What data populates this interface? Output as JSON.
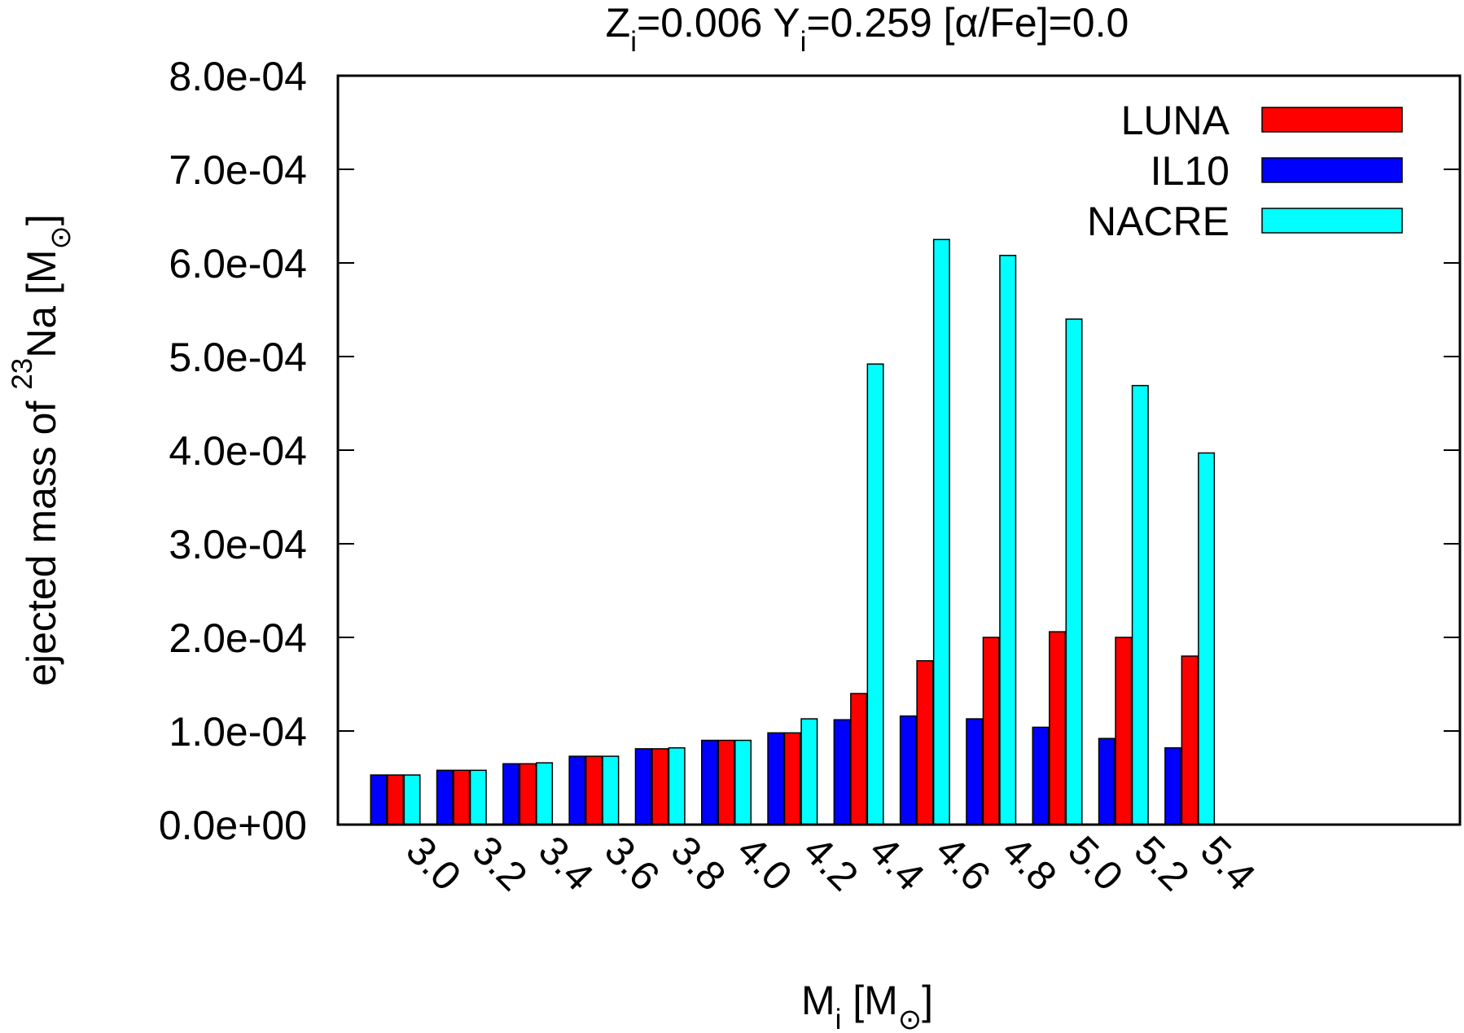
{
  "chart_data": {
    "type": "bar",
    "title": {
      "parts": [
        {
          "text": "Z"
        },
        {
          "text": "i",
          "sub": true
        },
        {
          "text": "=0.006 Y"
        },
        {
          "text": "i",
          "sub": true
        },
        {
          "text": "=0.259  [α/Fe]=0.0"
        }
      ]
    },
    "ylabel": {
      "parts": [
        {
          "text": "ejected mass  of "
        },
        {
          "text": "23",
          "sup": true
        },
        {
          "text": "Na  [M"
        },
        {
          "text": "⊙",
          "sub": true
        },
        {
          "text": "]"
        }
      ]
    },
    "xlabel": {
      "parts": [
        {
          "text": "M"
        },
        {
          "text": "i",
          "sub": true
        },
        {
          "text": " [M"
        },
        {
          "text": "⊙",
          "sub": true
        },
        {
          "text": "]"
        }
      ]
    },
    "categories": [
      "3.0",
      "3.2",
      "3.4",
      "3.6",
      "3.8",
      "4.0",
      "4.2",
      "4.4",
      "4.6",
      "4.8",
      "5.0",
      "5.2",
      "5.4"
    ],
    "ylim": [
      0,
      0.0008
    ],
    "yticks": [
      0,
      0.0001,
      0.0002,
      0.0003,
      0.0004,
      0.0005,
      0.0006,
      0.0007,
      0.0008
    ],
    "ytick_labels": [
      "0.0e+00",
      "1.0e-04",
      "2.0e-04",
      "3.0e-04",
      "4.0e-04",
      "5.0e-04",
      "6.0e-04",
      "7.0e-04",
      "8.0e-04"
    ],
    "legend_position": "top-right",
    "legend_order": [
      "LUNA",
      "IL10",
      "NACRE"
    ],
    "bar_order": [
      "IL10",
      "LUNA",
      "NACRE"
    ],
    "series": [
      {
        "name": "IL10",
        "color": "#0000ff",
        "values": [
          5.3e-05,
          5.8e-05,
          6.5e-05,
          7.3e-05,
          8.1e-05,
          9e-05,
          9.8e-05,
          0.000112,
          0.000116,
          0.000113,
          0.000104,
          9.2e-05,
          8.2e-05
        ]
      },
      {
        "name": "LUNA",
        "color": "#ff0000",
        "values": [
          5.3e-05,
          5.8e-05,
          6.5e-05,
          7.3e-05,
          8.1e-05,
          9e-05,
          9.8e-05,
          0.00014,
          0.000175,
          0.0002,
          0.000206,
          0.0002,
          0.00018
        ]
      },
      {
        "name": "NACRE",
        "color": "#00ffff",
        "values": [
          5.3e-05,
          5.8e-05,
          6.6e-05,
          7.3e-05,
          8.2e-05,
          9e-05,
          0.000113,
          0.000492,
          0.000625,
          0.000608,
          0.00054,
          0.000469,
          0.000397
        ]
      }
    ]
  }
}
